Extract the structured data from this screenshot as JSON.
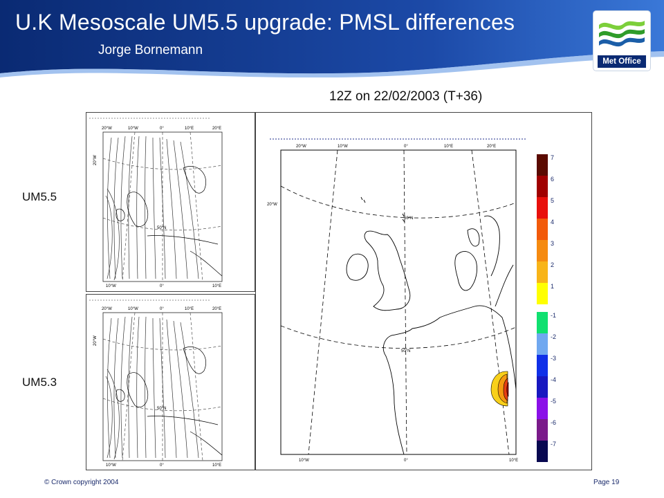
{
  "header": {
    "title": "U.K Mesoscale UM5.5 upgrade: PMSL differences",
    "author": "Jorge Bornemann",
    "logo_text": "Met Office"
  },
  "subtitle": "12Z on 22/02/2003 (T+36)",
  "panels": {
    "top_label": "UM5.5",
    "bottom_label": "UM5.3",
    "small_map_labels": {
      "lon_top": [
        "20°W",
        "10°W",
        "0°",
        "10°E",
        "20°E"
      ],
      "lon_bottom": [
        "10°W",
        "0°",
        "10°E"
      ],
      "lat_left": "20°W",
      "lat_mid": "50°N"
    }
  },
  "big_map": {
    "lon_top": [
      "20°W",
      "10°W",
      "0°",
      "10°E",
      "20°E"
    ],
    "lon_bottom": [
      "10°W",
      "0°",
      "10°E"
    ],
    "lat_left": "20°W",
    "lat_upper": "60°N",
    "lat_lower": "50°N"
  },
  "colorbar": {
    "positive": [
      {
        "label": "7",
        "color": "#5a0a00"
      },
      {
        "label": "6",
        "color": "#a00000"
      },
      {
        "label": "5",
        "color": "#e8100c"
      },
      {
        "label": "4",
        "color": "#f25a0a"
      },
      {
        "label": "3",
        "color": "#f58a10"
      },
      {
        "label": "2",
        "color": "#f8b418"
      },
      {
        "label": "1",
        "color": "#ffff00"
      }
    ],
    "negative": [
      {
        "label": "-1",
        "color": "#10e070"
      },
      {
        "label": "-2",
        "color": "#70a8f0"
      },
      {
        "label": "-3",
        "color": "#1030e8"
      },
      {
        "label": "-4",
        "color": "#1818c0"
      },
      {
        "label": "-5",
        "color": "#8a10e8"
      },
      {
        "label": "-6",
        "color": "#7a1a8a"
      },
      {
        "label": "-7",
        "color": "#080850"
      }
    ]
  },
  "footer": {
    "copyright": "© Crown copyright 2004",
    "page": "Page 19"
  },
  "colors": {
    "header_blue": "#0a2a73",
    "accent_blue": "#2c63c6"
  }
}
